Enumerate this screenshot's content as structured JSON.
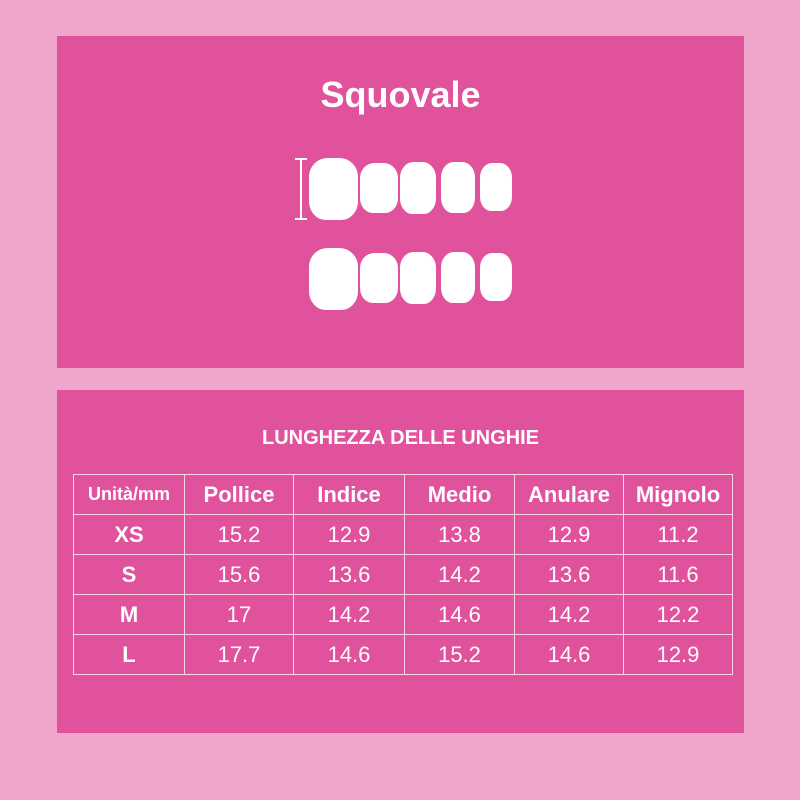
{
  "header": {
    "title": "Squovale"
  },
  "illustration": {
    "icon": "nail-shapes-icon",
    "measure_icon": "length-indicator-icon"
  },
  "table": {
    "title": "LUNGHEZZA DELLE UNGHIE",
    "columns": [
      "Unità/mm",
      "Pollice",
      "Indice",
      "Medio",
      "Anulare",
      "Mignolo"
    ],
    "rows": [
      [
        "XS",
        "15.2",
        "12.9",
        "13.8",
        "12.9",
        "11.2"
      ],
      [
        "S",
        "15.6",
        "13.6",
        "14.2",
        "13.6",
        "11.6"
      ],
      [
        "M",
        "17",
        "14.2",
        "14.6",
        "14.2",
        "12.2"
      ],
      [
        "L",
        "17.7",
        "14.6",
        "15.2",
        "14.6",
        "12.9"
      ]
    ]
  },
  "colors": {
    "background": "#f0a5cb",
    "panel": "#e0529c",
    "text": "#ffffff"
  }
}
